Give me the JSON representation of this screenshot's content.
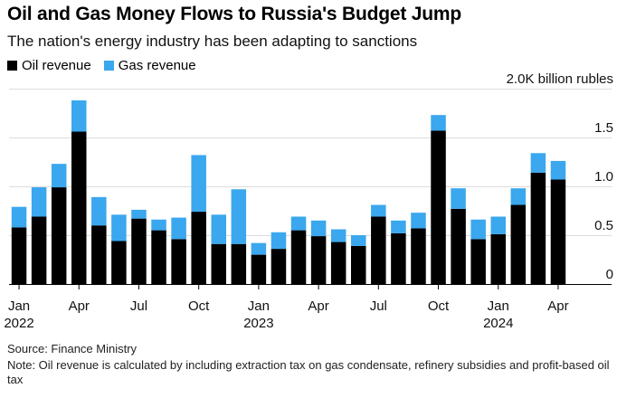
{
  "title": "Oil and Gas Money Flows to Russia's Budget Jump",
  "subtitle": "The nation's energy industry has been adapting to sanctions",
  "source": "Source: Finance Ministry",
  "note": "Note: Oil revenue is calculated by including extraction tax on gas condensate, refinery subsidies and profit-based oil tax",
  "colors": {
    "oil": "#000000",
    "gas": "#3aa7ee"
  },
  "chart_data": {
    "type": "bar",
    "stacked": true,
    "ylabel": "billion rubles",
    "ylim": [
      0,
      2.0
    ],
    "yticks": [
      {
        "value": 0,
        "label": "0"
      },
      {
        "value": 0.5,
        "label": "0.5"
      },
      {
        "value": 1.0,
        "label": "1.0"
      },
      {
        "value": 1.5,
        "label": "1.5"
      },
      {
        "value": 2.0,
        "label": "2.0K billion rubles"
      }
    ],
    "categories": [
      "2022-01",
      "2022-02",
      "2022-03",
      "2022-04",
      "2022-05",
      "2022-06",
      "2022-07",
      "2022-08",
      "2022-09",
      "2022-10",
      "2022-11",
      "2022-12",
      "2023-01",
      "2023-02",
      "2023-03",
      "2023-04",
      "2023-05",
      "2023-06",
      "2023-07",
      "2023-08",
      "2023-09",
      "2023-10",
      "2023-11",
      "2023-12",
      "2024-01",
      "2024-02",
      "2024-03",
      "2024-04"
    ],
    "xtick_labels": [
      {
        "index": 0,
        "label": "Jan",
        "year": "2022"
      },
      {
        "index": 3,
        "label": "Apr"
      },
      {
        "index": 6,
        "label": "Jul"
      },
      {
        "index": 9,
        "label": "Oct"
      },
      {
        "index": 12,
        "label": "Jan",
        "year": "2023"
      },
      {
        "index": 15,
        "label": "Apr"
      },
      {
        "index": 18,
        "label": "Jul"
      },
      {
        "index": 21,
        "label": "Oct"
      },
      {
        "index": 24,
        "label": "Jan",
        "year": "2024"
      },
      {
        "index": 27,
        "label": "Apr"
      }
    ],
    "series": [
      {
        "name": "Oil revenue",
        "color": "#000000",
        "values": [
          0.58,
          0.69,
          0.99,
          1.56,
          0.6,
          0.44,
          0.67,
          0.55,
          0.46,
          0.74,
          0.41,
          0.41,
          0.3,
          0.36,
          0.55,
          0.49,
          0.43,
          0.39,
          0.69,
          0.52,
          0.57,
          1.57,
          0.77,
          0.46,
          0.51,
          0.81,
          1.14,
          1.07
        ]
      },
      {
        "name": "Gas revenue",
        "color": "#3aa7ee",
        "values": [
          0.21,
          0.3,
          0.24,
          0.32,
          0.29,
          0.27,
          0.09,
          0.11,
          0.22,
          0.58,
          0.3,
          0.56,
          0.12,
          0.17,
          0.14,
          0.16,
          0.13,
          0.11,
          0.12,
          0.13,
          0.16,
          0.16,
          0.21,
          0.2,
          0.18,
          0.17,
          0.2,
          0.19
        ]
      }
    ]
  }
}
